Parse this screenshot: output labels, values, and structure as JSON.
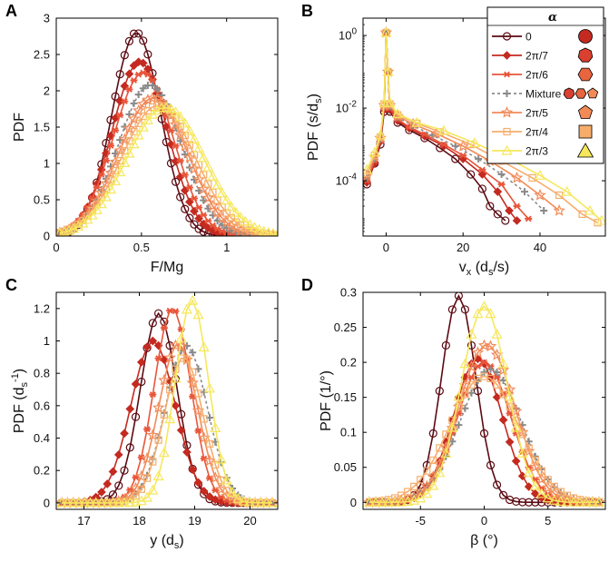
{
  "series_styles": [
    {
      "key": "a0",
      "color": "#5c0a12",
      "marker": "circle",
      "dash": "",
      "fill": "none"
    },
    {
      "key": "a2p7",
      "color": "#c42a20",
      "marker": "diamond",
      "dash": "",
      "fill": "solid"
    },
    {
      "key": "a2p6",
      "color": "#e8553a",
      "marker": "asterisk",
      "dash": "",
      "fill": "none"
    },
    {
      "key": "mix",
      "color": "#8a8a8a",
      "marker": "plus",
      "dash": "3,3",
      "fill": "none"
    },
    {
      "key": "a2p5",
      "color": "#f28a58",
      "marker": "star",
      "dash": "",
      "fill": "none"
    },
    {
      "key": "a2p4",
      "color": "#f6ad6c",
      "marker": "square",
      "dash": "",
      "fill": "none"
    },
    {
      "key": "a2p3",
      "color": "#f6e75c",
      "marker": "triangle",
      "dash": "",
      "fill": "none"
    }
  ],
  "legend": {
    "title": "α",
    "entries": [
      "0",
      "2π/7",
      "2π/6",
      "Mixture",
      "2π/5",
      "2π/4",
      "2π/3"
    ],
    "shape_icons": [
      {
        "shape": "circle",
        "color": "#c42a20"
      },
      {
        "shape": "heptagon",
        "color": "#d94030"
      },
      {
        "shape": "hexagon",
        "color": "#e8653f"
      },
      {
        "shape": "mixture",
        "color": "#e8653f"
      },
      {
        "shape": "pentagon",
        "color": "#f28a58"
      },
      {
        "shape": "square",
        "color": "#f6ad6c"
      },
      {
        "shape": "triangle",
        "color": "#f6e75c"
      }
    ]
  },
  "chart_data": [
    {
      "panel": "A",
      "type": "line",
      "xlabel": "F/Mg",
      "ylabel": "PDF",
      "xlim": [
        0,
        1.3
      ],
      "ylim": [
        0,
        3
      ],
      "xticks": [
        0,
        0.5,
        1
      ],
      "xtick_labels": [
        "0",
        "0.5",
        "1"
      ],
      "yticks": [
        0,
        0.5,
        1,
        1.5,
        2,
        2.5,
        3
      ],
      "ytick_labels": [
        "0",
        "0.5",
        "1",
        "1.5",
        "2",
        "2.5",
        "3"
      ],
      "gauss": [
        {
          "mu": 0.47,
          "sigma": 0.142,
          "amp": 2.8
        },
        {
          "mu": 0.49,
          "sigma": 0.162,
          "amp": 2.4
        },
        {
          "mu": 0.51,
          "sigma": 0.175,
          "amp": 2.25
        },
        {
          "mu": 0.55,
          "sigma": 0.185,
          "amp": 2.08
        },
        {
          "mu": 0.57,
          "sigma": 0.2,
          "amp": 1.9
        },
        {
          "mu": 0.6,
          "sigma": 0.215,
          "amp": 1.8
        },
        {
          "mu": 0.64,
          "sigma": 0.225,
          "amp": 1.77
        }
      ],
      "x_range": [
        0.02,
        1.3
      ],
      "n_points": 48
    },
    {
      "panel": "B",
      "type": "line",
      "yscale": "log",
      "xlabel": "v_x (d_s/s)",
      "ylabel": "PDF (s/d_s)",
      "xlim": [
        -6,
        57
      ],
      "ylim": [
        3e-06,
        3
      ],
      "xticks": [
        0,
        20,
        40
      ],
      "xtick_labels": [
        "0",
        "20",
        "40"
      ],
      "yticks": [
        0.0001,
        0.01,
        1
      ],
      "ytick_labels": [
        "10^-4",
        "10^-2",
        "10^0"
      ],
      "series": [
        {
          "points": [
            [
              -5,
              8e-05
            ],
            [
              -3,
              0.0003
            ],
            [
              -1.5,
              0.001
            ],
            [
              -0.5,
              0.008
            ],
            [
              0,
              1.2
            ],
            [
              0.5,
              0.1
            ],
            [
              1,
              0.008
            ],
            [
              3,
              0.004
            ],
            [
              6,
              0.0025
            ],
            [
              10,
              0.0015
            ],
            [
              14,
              0.0008
            ],
            [
              18,
              0.0004
            ],
            [
              22,
              0.00015
            ],
            [
              25,
              6e-05
            ],
            [
              27,
              2e-05
            ],
            [
              29,
              1.2e-05
            ],
            [
              31,
              8e-06
            ]
          ]
        },
        {
          "points": [
            [
              -5,
              9e-05
            ],
            [
              -3,
              0.0003
            ],
            [
              -1.5,
              0.0012
            ],
            [
              -0.5,
              0.009
            ],
            [
              0,
              1.2
            ],
            [
              0.5,
              0.1
            ],
            [
              1,
              0.009
            ],
            [
              3,
              0.0045
            ],
            [
              6,
              0.0028
            ],
            [
              10,
              0.0017
            ],
            [
              15,
              0.0009
            ],
            [
              20,
              0.0004
            ],
            [
              25,
              0.00015
            ],
            [
              29,
              5e-05
            ],
            [
              32,
              1.5e-05
            ],
            [
              34,
              8e-06
            ]
          ]
        },
        {
          "points": [
            [
              -5,
              0.0001
            ],
            [
              -3,
              0.00035
            ],
            [
              -1.5,
              0.0013
            ],
            [
              -0.5,
              0.01
            ],
            [
              0,
              1.2
            ],
            [
              0.5,
              0.1
            ],
            [
              1,
              0.01
            ],
            [
              3,
              0.005
            ],
            [
              6,
              0.003
            ],
            [
              10,
              0.0019
            ],
            [
              15,
              0.001
            ],
            [
              20,
              0.0005
            ],
            [
              25,
              0.0002
            ],
            [
              30,
              8e-05
            ],
            [
              34,
              2e-05
            ],
            [
              37,
              9e-06
            ]
          ]
        },
        {
          "points": [
            [
              -5,
              0.00012
            ],
            [
              -3,
              0.0004
            ],
            [
              -1.5,
              0.0014
            ],
            [
              -0.5,
              0.011
            ],
            [
              0,
              1.2
            ],
            [
              0.5,
              0.1
            ],
            [
              1,
              0.011
            ],
            [
              3,
              0.0055
            ],
            [
              7,
              0.0033
            ],
            [
              12,
              0.0018
            ],
            [
              18,
              0.0009
            ],
            [
              24,
              0.0004
            ],
            [
              30,
              0.00015
            ],
            [
              36,
              5e-05
            ],
            [
              41,
              1.5e-05
            ]
          ]
        },
        {
          "points": [
            [
              -5,
              0.00014
            ],
            [
              -3,
              0.00045
            ],
            [
              -1.5,
              0.0015
            ],
            [
              -0.5,
              0.012
            ],
            [
              0,
              1.2
            ],
            [
              0.5,
              0.1
            ],
            [
              1,
              0.012
            ],
            [
              3,
              0.006
            ],
            [
              7,
              0.0036
            ],
            [
              13,
              0.002
            ],
            [
              20,
              0.0009
            ],
            [
              27,
              0.00035
            ],
            [
              34,
              0.00012
            ],
            [
              40,
              4e-05
            ],
            [
              45,
              1.5e-05
            ]
          ]
        },
        {
          "points": [
            [
              -5,
              0.00016
            ],
            [
              -3,
              0.0005
            ],
            [
              -1.5,
              0.0016
            ],
            [
              -0.5,
              0.013
            ],
            [
              0,
              1.2
            ],
            [
              0.5,
              0.1
            ],
            [
              1,
              0.013
            ],
            [
              3,
              0.0065
            ],
            [
              8,
              0.0038
            ],
            [
              14,
              0.0022
            ],
            [
              22,
              0.001
            ],
            [
              30,
              0.00035
            ],
            [
              38,
              0.00012
            ],
            [
              45,
              4e-05
            ],
            [
              51,
              1.2e-05
            ],
            [
              55,
              7e-06
            ]
          ]
        },
        {
          "points": [
            [
              -5,
              0.0002
            ],
            [
              -3,
              0.0006
            ],
            [
              -1.5,
              0.0018
            ],
            [
              -0.5,
              0.014
            ],
            [
              0,
              1.2
            ],
            [
              0.5,
              0.1
            ],
            [
              1,
              0.014
            ],
            [
              3,
              0.007
            ],
            [
              8,
              0.004
            ],
            [
              15,
              0.0024
            ],
            [
              23,
              0.0011
            ],
            [
              32,
              0.0004
            ],
            [
              40,
              0.00014
            ],
            [
              47,
              5e-05
            ],
            [
              53,
              1.5e-05
            ],
            [
              56,
              8e-06
            ]
          ]
        }
      ]
    },
    {
      "panel": "C",
      "type": "line",
      "xlabel": "y (d_s)",
      "ylabel": "PDF (d_s^-1)",
      "xlim": [
        16.5,
        20.5
      ],
      "ylim": [
        -0.04,
        1.3
      ],
      "xticks": [
        17,
        18,
        19,
        20
      ],
      "xtick_labels": [
        "17",
        "18",
        "19",
        "20"
      ],
      "yticks": [
        0,
        0.2,
        0.4,
        0.6,
        0.8,
        1,
        1.2
      ],
      "ytick_labels": [
        "0",
        "0.2",
        "0.4",
        "0.6",
        "0.8",
        "1",
        "1.2"
      ],
      "gauss": [
        {
          "mu": 18.35,
          "sigma": 0.33,
          "amp": 1.17
        },
        {
          "mu": 18.25,
          "sigma": 0.4,
          "amp": 1.0
        },
        {
          "mu": 18.6,
          "sigma": 0.33,
          "amp": 1.2
        },
        {
          "mu": 18.85,
          "sigma": 0.38,
          "amp": 0.97
        },
        {
          "mu": 18.7,
          "sigma": 0.35,
          "amp": 0.98
        },
        {
          "mu": 18.8,
          "sigma": 0.35,
          "amp": 0.9
        },
        {
          "mu": 18.95,
          "sigma": 0.3,
          "amp": 1.25
        }
      ],
      "x_range": [
        16.6,
        20.4
      ],
      "n_points": 38
    },
    {
      "panel": "D",
      "type": "line",
      "xlabel": "β (°)",
      "ylabel": "PDF (1/°)",
      "xlim": [
        -9.5,
        9.5
      ],
      "ylim": [
        -0.01,
        0.3
      ],
      "xticks": [
        -5,
        0,
        5
      ],
      "xtick_labels": [
        "-5",
        "0",
        "5"
      ],
      "yticks": [
        0,
        0.05,
        0.1,
        0.15,
        0.2,
        0.25,
        0.3
      ],
      "ytick_labels": [
        "0",
        "0.05",
        "0.1",
        "0.15",
        "0.2",
        "0.25",
        "0.3"
      ],
      "gauss": [
        {
          "mu": -2.0,
          "sigma": 1.35,
          "amp": 0.295
        },
        {
          "mu": -0.5,
          "sigma": 1.9,
          "amp": 0.205
        },
        {
          "mu": 0.0,
          "sigma": 2.1,
          "amp": 0.2
        },
        {
          "mu": 0.5,
          "sigma": 2.4,
          "amp": 0.19
        },
        {
          "mu": 0.2,
          "sigma": 2.2,
          "amp": 0.225
        },
        {
          "mu": 0.0,
          "sigma": 2.7,
          "amp": 0.18
        },
        {
          "mu": 0.0,
          "sigma": 1.8,
          "amp": 0.28
        }
      ],
      "x_range": [
        -9,
        9
      ],
      "n_points": 37
    }
  ]
}
